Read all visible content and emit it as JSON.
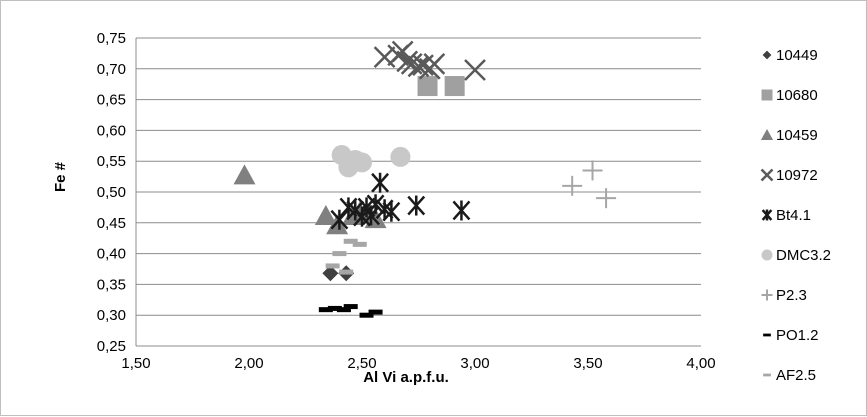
{
  "chart_data": {
    "type": "scatter",
    "xlabel": "Al Vi  a.p.f.u.",
    "ylabel": "Fe #",
    "xlim": [
      1.5,
      4.0
    ],
    "ylim": [
      0.25,
      0.75
    ],
    "x_ticks": [
      "1,50",
      "2,00",
      "2,50",
      "3,00",
      "3,50",
      "4,00"
    ],
    "y_ticks": [
      "0,25",
      "0,30",
      "0,35",
      "0,40",
      "0,45",
      "0,50",
      "0,55",
      "0,60",
      "0,65",
      "0,70",
      "0,75"
    ],
    "grid": "horizontal",
    "legend_position": "right",
    "series": [
      {
        "name": "10449",
        "marker": "diamond",
        "color": "#404040",
        "points": [
          [
            2.36,
            0.368
          ],
          [
            2.43,
            0.368
          ]
        ]
      },
      {
        "name": "10680",
        "marker": "square",
        "color": "#a0a0a0",
        "points": [
          [
            2.79,
            0.672
          ],
          [
            2.91,
            0.672
          ]
        ]
      },
      {
        "name": "10459",
        "marker": "triangle",
        "color": "#808080",
        "points": [
          [
            1.98,
            0.527
          ],
          [
            2.34,
            0.461
          ],
          [
            2.39,
            0.446
          ],
          [
            2.46,
            0.461
          ],
          [
            2.49,
            0.467
          ],
          [
            2.53,
            0.464
          ],
          [
            2.56,
            0.456
          ]
        ]
      },
      {
        "name": "10972",
        "marker": "x",
        "color": "#595959",
        "points": [
          [
            2.6,
            0.719
          ],
          [
            2.66,
            0.722
          ],
          [
            2.68,
            0.728
          ],
          [
            2.7,
            0.712
          ],
          [
            2.72,
            0.708
          ],
          [
            2.75,
            0.704
          ],
          [
            2.77,
            0.706
          ],
          [
            2.8,
            0.7
          ],
          [
            2.82,
            0.708
          ],
          [
            3.0,
            0.698
          ]
        ]
      },
      {
        "name": "Bt4.1",
        "marker": "asterisk",
        "color": "#1a1a1a",
        "points": [
          [
            2.4,
            0.455
          ],
          [
            2.44,
            0.475
          ],
          [
            2.47,
            0.47
          ],
          [
            2.5,
            0.46
          ],
          [
            2.52,
            0.475
          ],
          [
            2.54,
            0.462
          ],
          [
            2.56,
            0.48
          ],
          [
            2.58,
            0.515
          ],
          [
            2.6,
            0.472
          ],
          [
            2.63,
            0.468
          ],
          [
            2.74,
            0.478
          ],
          [
            2.94,
            0.47
          ]
        ]
      },
      {
        "name": "DMC3.2",
        "marker": "circle",
        "color": "#c8c8c8",
        "points": [
          [
            2.41,
            0.56
          ],
          [
            2.44,
            0.54
          ],
          [
            2.47,
            0.552
          ],
          [
            2.5,
            0.548
          ],
          [
            2.67,
            0.557
          ]
        ]
      },
      {
        "name": "P2.3",
        "marker": "plus",
        "color": "#a6a6a6",
        "points": [
          [
            3.43,
            0.51
          ],
          [
            3.52,
            0.535
          ],
          [
            3.58,
            0.49
          ]
        ]
      },
      {
        "name": "PO1.2",
        "marker": "dash",
        "color": "#000000",
        "points": [
          [
            2.34,
            0.309
          ],
          [
            2.38,
            0.311
          ],
          [
            2.42,
            0.309
          ],
          [
            2.45,
            0.314
          ],
          [
            2.52,
            0.3
          ],
          [
            2.56,
            0.305
          ]
        ]
      },
      {
        "name": "AF2.5",
        "marker": "dash",
        "color": "#a6a6a6",
        "points": [
          [
            2.37,
            0.38
          ],
          [
            2.4,
            0.4
          ],
          [
            2.43,
            0.37
          ],
          [
            2.45,
            0.42
          ],
          [
            2.49,
            0.415
          ]
        ]
      }
    ]
  }
}
